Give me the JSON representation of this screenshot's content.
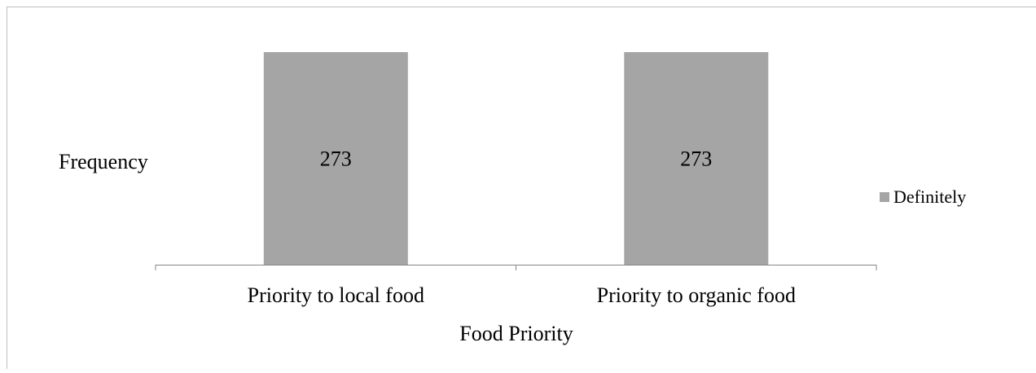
{
  "chart_data": {
    "type": "bar",
    "categories": [
      "Priority to local food",
      "Priority to organic food"
    ],
    "series": [
      {
        "name": "Definitely",
        "values": [
          273,
          273
        ],
        "color": "#a5a5a5"
      }
    ],
    "data_labels": [
      "273",
      "273"
    ],
    "xlabel": "Food Priority",
    "ylabel": "Frequency",
    "ylim": [
      0,
      273
    ],
    "y_axis_visible": false,
    "grid": false,
    "legend_position": "right",
    "axis_color": "#868686",
    "border_color": "#bfbfbf"
  }
}
